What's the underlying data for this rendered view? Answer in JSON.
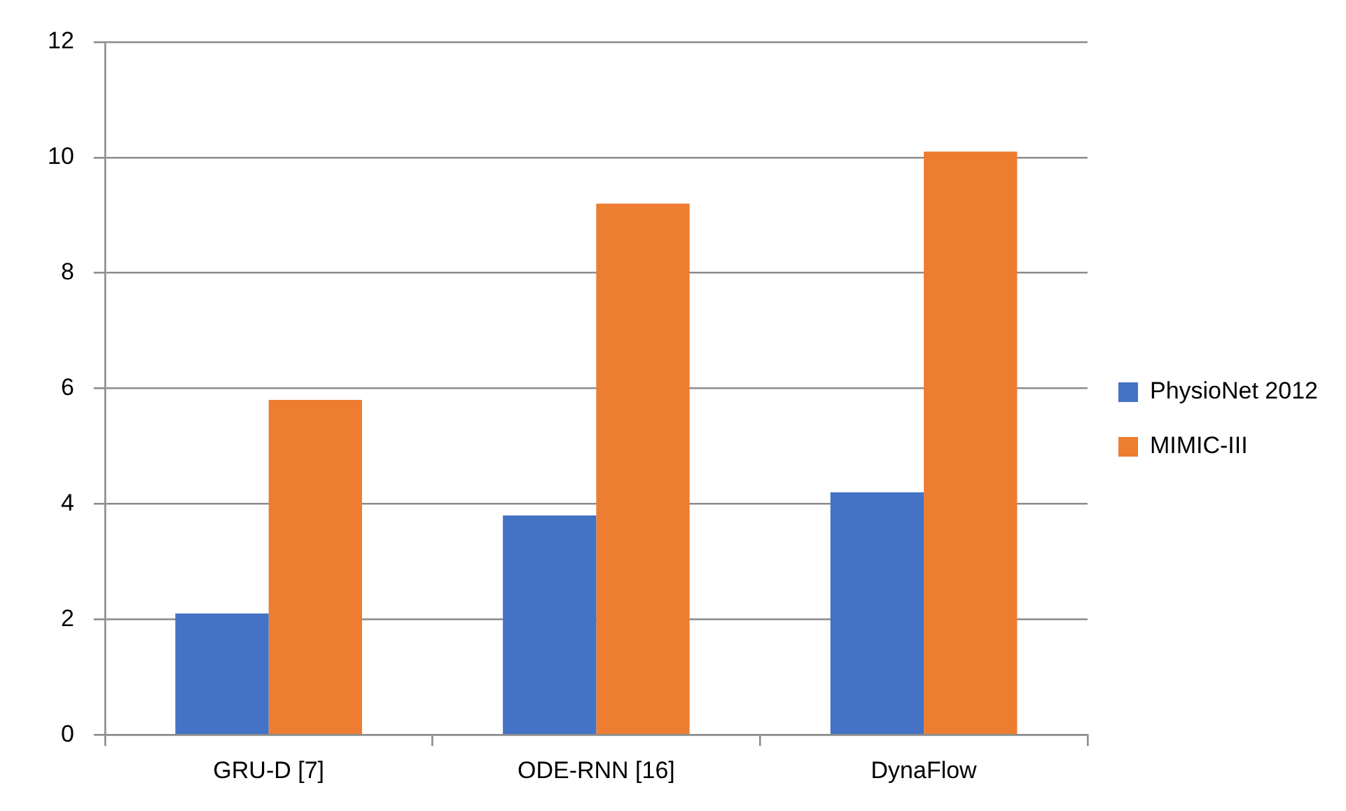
{
  "chart_data": {
    "type": "bar",
    "categories": [
      "GRU-D [7]",
      "ODE-RNN [16]",
      "DynaFlow"
    ],
    "series": [
      {
        "name": "PhysioNet 2012",
        "color": "#4472c4",
        "values": [
          2.1,
          3.8,
          4.2
        ]
      },
      {
        "name": "MIMIC-III",
        "color": "#ed7d31",
        "values": [
          5.8,
          9.2,
          10.1
        ]
      }
    ],
    "ylim": [
      0,
      12
    ],
    "yticks": [
      0,
      2,
      4,
      6,
      8,
      10,
      12
    ],
    "grid": "y",
    "legend": "right"
  }
}
